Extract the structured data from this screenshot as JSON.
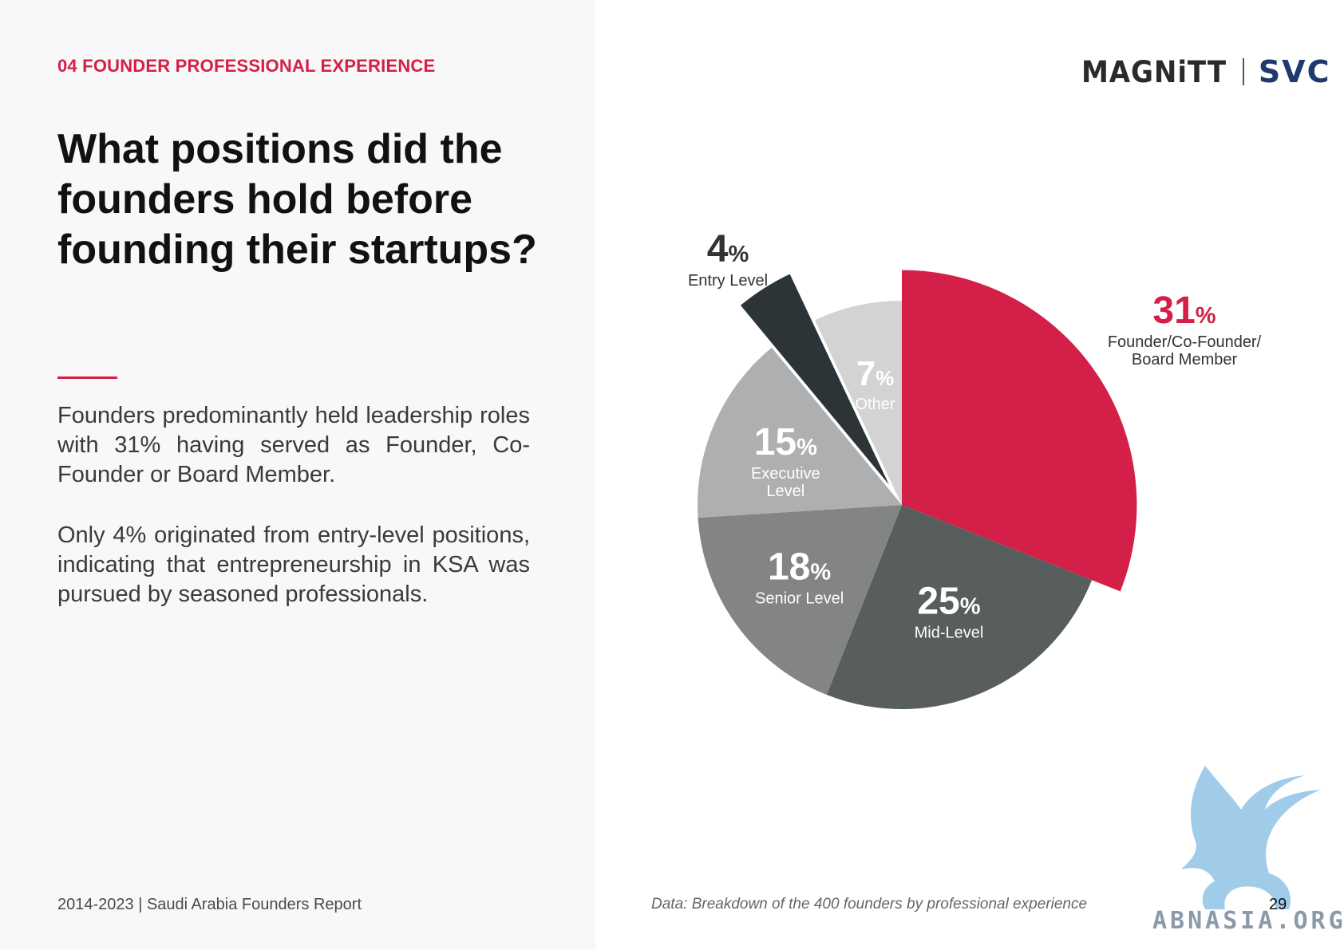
{
  "header": {
    "section_label": "04 FOUNDER PROFESSIONAL EXPERIENCE",
    "logo_magnitt": "MAGNiTT",
    "logo_svc": "SVC"
  },
  "main": {
    "title": "What positions did the founders hold before founding their startups?",
    "paragraph_1": "Founders predominantly held leadership roles with 31% having served as Founder, Co-Founder or Board Member.",
    "paragraph_2": "Only 4% originated from entry-level positions, indicating that entrepreneurship in KSA was pursued by seasoned professionals."
  },
  "footer": {
    "report_name": "2014-2023 | Saudi Arabia Founders Report",
    "data_note": "Data: Breakdown of the 400 founders by professional experience",
    "page_number": "29"
  },
  "watermark": {
    "text": "ABNASIA.ORG"
  },
  "chart_data": {
    "type": "pie",
    "title": "",
    "unit": "%",
    "slices": [
      {
        "label": "Founder/Co-Founder/ Board Member",
        "value": 31,
        "color": "#d41f48",
        "exploded": true
      },
      {
        "label": "Mid-Level",
        "value": 25,
        "color": "#585e5e"
      },
      {
        "label": "Senior Level",
        "value": 18,
        "color": "#838585"
      },
      {
        "label": "Executive Level",
        "value": 15,
        "color": "#aeafb0"
      },
      {
        "label": "Entry Level",
        "value": 4,
        "color": "#2d3438",
        "exploded": true
      },
      {
        "label": "Other",
        "value": 7,
        "color": "#d3d3d4"
      }
    ]
  }
}
